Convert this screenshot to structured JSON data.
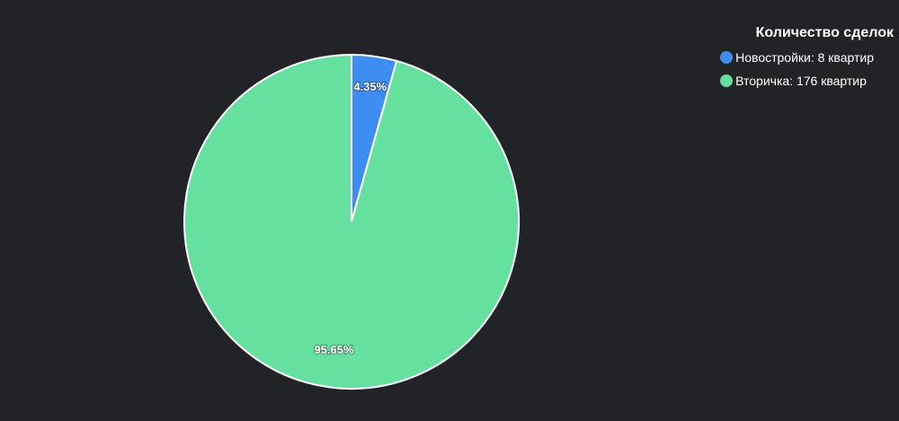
{
  "chart_data": {
    "type": "pie",
    "title": "Количество сделок",
    "legend_position": "top-right",
    "series": [
      {
        "name": "Новостройки: 8 квартир",
        "value": 8,
        "percent_label": "4.35%",
        "color": "#3e8ef2"
      },
      {
        "name": "Вторичка: 176 квартир",
        "value": 176,
        "percent_label": "95.65%",
        "color": "#66e09f"
      }
    ],
    "border_color": "#ffffff",
    "start_angle": "top, clockwise"
  }
}
